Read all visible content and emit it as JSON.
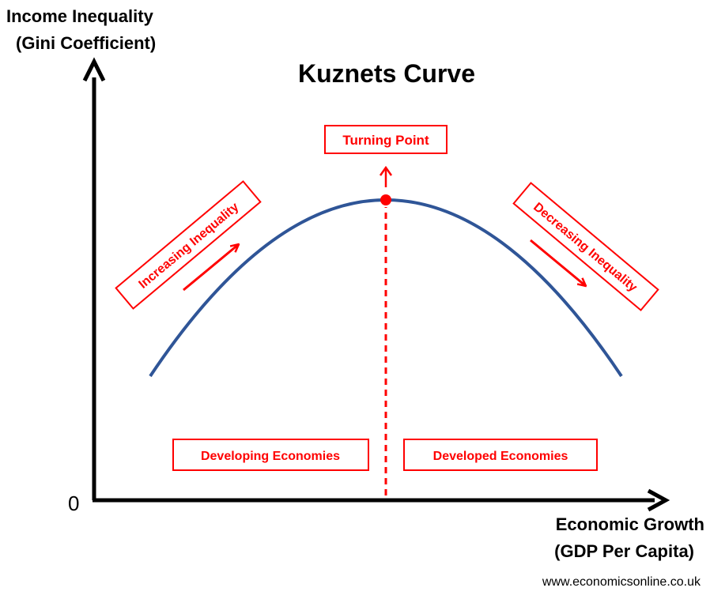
{
  "title": "Kuznets Curve",
  "y_axis": {
    "label_line1": "Income Inequality",
    "label_line2": "(Gini Coefficient)"
  },
  "x_axis": {
    "label_line1": "Economic Growth",
    "label_line2": "(GDP Per Capita)"
  },
  "origin_label": "0",
  "annotations": {
    "turning_point": "Turning Point",
    "increasing": "Increasing Inequality",
    "decreasing": "Decreasing Inequality",
    "developing": "Developing Economies",
    "developed": "Developed Economies"
  },
  "source": "www.economicsonline.co.uk",
  "colors": {
    "axis": "#000000",
    "curve": "#2f5597",
    "accent": "#ff0000",
    "text": "#000000"
  },
  "icons": {
    "y_axis_arrow": "arrow-up-icon",
    "x_axis_arrow": "arrow-right-icon",
    "turning_point_arrow": "arrow-up-icon",
    "increasing_arrow": "arrow-up-right-icon",
    "decreasing_arrow": "arrow-down-right-icon"
  }
}
